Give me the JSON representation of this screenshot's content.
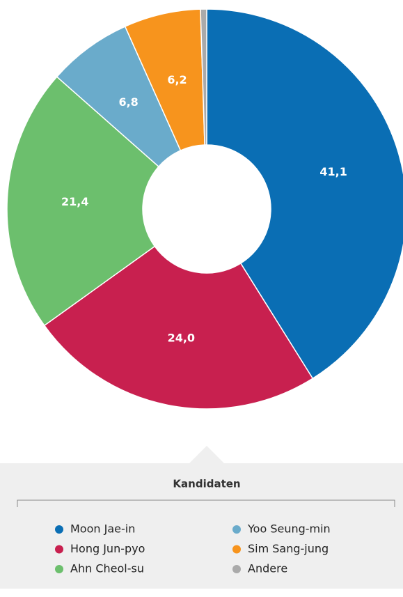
{
  "chart_data": {
    "type": "donut",
    "categories": [
      "Moon Jae-in",
      "Hong Jun-pyo",
      "Ahn Cheol-su",
      "Yoo Seung-min",
      "Sim Sang-jung",
      "Andere"
    ],
    "values": [
      41.1,
      24.0,
      21.4,
      6.8,
      6.2,
      0.5
    ],
    "value_labels": [
      "41,1",
      "24,0",
      "21,4",
      "6,8",
      "6,2",
      null
    ],
    "colors": [
      "#0a6eb4",
      "#c8204f",
      "#6cbf6d",
      "#6aabcb",
      "#f7941d",
      "#aaaaaa"
    ],
    "legend_title": "Kandidaten"
  }
}
